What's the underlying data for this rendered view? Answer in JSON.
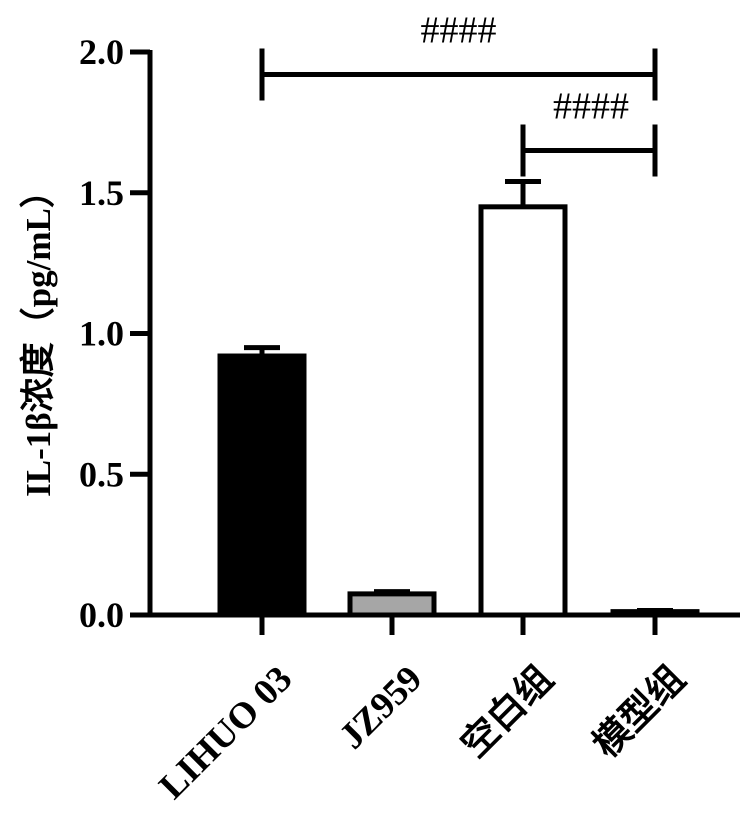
{
  "chart_data": {
    "type": "bar",
    "ylabel": "IL-1β浓度（pg/mL）",
    "ylim": [
      0,
      2.0
    ],
    "yticks": [
      "0.0",
      "0.5",
      "1.0",
      "1.5",
      "2.0"
    ],
    "categories": [
      "LIHUO 03",
      "JZ959",
      "空白组",
      "模型组"
    ],
    "values": [
      0.92,
      0.075,
      1.45,
      0.012
    ],
    "errors": [
      0.03,
      0.008,
      0.09,
      0.004
    ],
    "bar_colors": [
      "#000000",
      "#a6a6a6",
      "#ffffff",
      "#000000"
    ],
    "significance": [
      {
        "label": "####",
        "from": "LIHUO 03",
        "to": "模型组",
        "y": 1.92
      },
      {
        "label": "####",
        "from": "空白组",
        "to": "模型组",
        "y": 1.65
      }
    ],
    "grid": false,
    "legend": "none"
  }
}
